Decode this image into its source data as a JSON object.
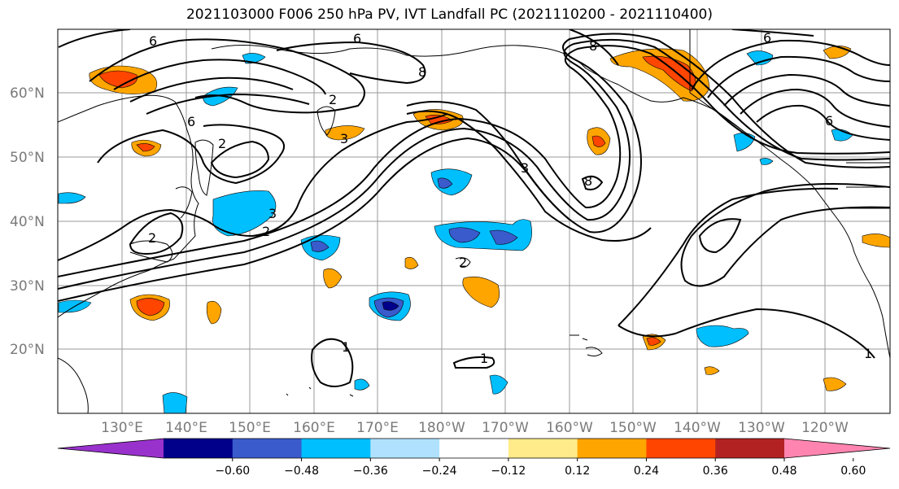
{
  "title": "2021103000 F006 250 hPa PV, IVT Landfall PC (2021110200 - 2021110400)",
  "map": {
    "lat_labels": [
      "60°N",
      "50°N",
      "40°N",
      "30°N",
      "20°N"
    ],
    "lon_labels": [
      "130°E",
      "140°E",
      "150°E",
      "160°E",
      "170°E",
      "180°W",
      "170°W",
      "160°W",
      "150°W",
      "140°W",
      "130°W",
      "120°W"
    ],
    "contour_labels": [
      "6",
      "6",
      "6",
      "2",
      "2",
      "2",
      "3",
      "3",
      "3",
      "1",
      "1",
      "1",
      "6",
      "8",
      "8",
      "6",
      "2",
      "2",
      "8"
    ]
  },
  "colorbar": {
    "colors": [
      "#9932CC",
      "#00008B",
      "#3A5BCC",
      "#00BFFF",
      "#B0E2FF",
      "#FFFFFF",
      "#FFEB8A",
      "#FFA500",
      "#FF4500",
      "#B22222",
      "#FF85B0"
    ],
    "tick_labels": [
      "−0.60",
      "−0.48",
      "−0.36",
      "−0.24",
      "−0.12",
      "0.12",
      "0.24",
      "0.36",
      "0.48",
      "0.60"
    ]
  }
}
